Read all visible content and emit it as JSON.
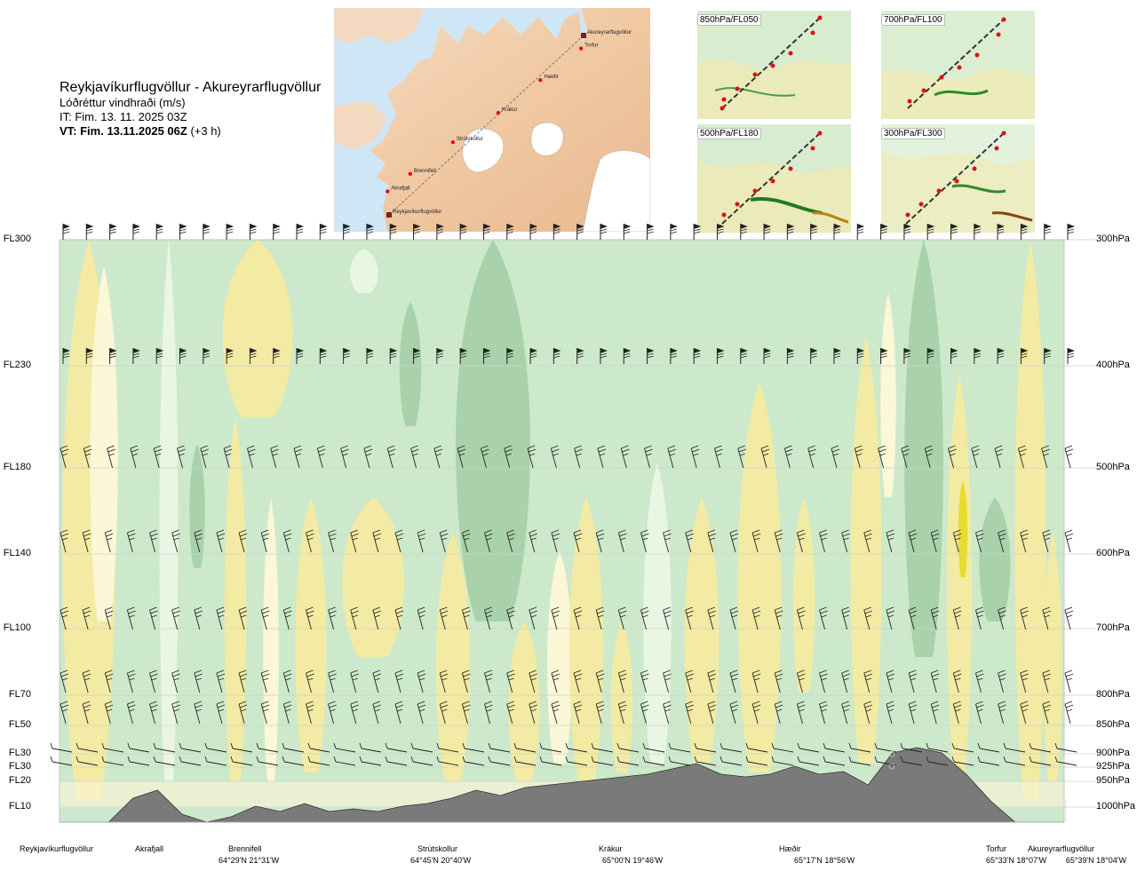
{
  "header": {
    "route": "Reykjavíkurflugvöllur - Akureyrarflugvöllur",
    "variable": "Lóðréttur vindhraði (m/s)",
    "issue_time": "IT: Fim. 13. 11. 2025 03Z",
    "valid_time_bold": "VT: Fim. 13.11.2025 06Z",
    "valid_time_suffix": "(+3 h)"
  },
  "map": {
    "towns": [
      {
        "name": "Akureyrarflugvöllur",
        "lon": -18.07,
        "lat": 65.66
      },
      {
        "name": "Torfur",
        "lon": -18.12,
        "lat": 65.55
      },
      {
        "name": "Hæðir",
        "lon": -18.93,
        "lat": 65.28
      },
      {
        "name": "Krákur",
        "lon": -19.77,
        "lat": 65.0
      },
      {
        "name": "Strútskollur",
        "lon": -20.67,
        "lat": 64.75
      },
      {
        "name": "Brennifell",
        "lon": -21.52,
        "lat": 64.48
      },
      {
        "name": "Akrafjall",
        "lon": -21.97,
        "lat": 64.33
      },
      {
        "name": "Reykjavíkurflugvöllur",
        "lon": -21.94,
        "lat": 64.13
      }
    ]
  },
  "mini_panels": [
    {
      "label": "850hPa/FL050"
    },
    {
      "label": "700hPa/FL100"
    },
    {
      "label": "500hPa/FL180"
    },
    {
      "label": "300hPa/FL300"
    }
  ],
  "levels": [
    {
      "fl": "FL300",
      "hpa": "300hPa"
    },
    {
      "fl": "FL230",
      "hpa": "400hPa"
    },
    {
      "fl": "FL180",
      "hpa": "500hPa"
    },
    {
      "fl": "FL140",
      "hpa": "600hPa"
    },
    {
      "fl": "FL100",
      "hpa": "700hPa"
    },
    {
      "fl": "FL70",
      "hpa": "800hPa"
    },
    {
      "fl": "FL50",
      "hpa": "850hPa"
    },
    {
      "fl": "FL30",
      "hpa": "900hPa"
    },
    {
      "fl": "FL30",
      "hpa": "925hPa"
    },
    {
      "fl": "FL20",
      "hpa": "950hPa"
    },
    {
      "fl": "FL10",
      "hpa": "1000hPa"
    }
  ],
  "locations": [
    {
      "name": "Reykjavíkurflugvöllur",
      "coord": ""
    },
    {
      "name": "Akrafjall",
      "coord": ""
    },
    {
      "name": "Brennifell",
      "coord": "64°29'N 21°31'W"
    },
    {
      "name": "Strútskollur",
      "coord": "64°45'N 20°40'W"
    },
    {
      "name": "Krákur",
      "coord": "65°00'N 19°46'W"
    },
    {
      "name": "Hæðir",
      "coord": "65°17'N 18°56'W"
    },
    {
      "name": "Torfur",
      "coord": "65°33'N 18°07'W"
    },
    {
      "name": "Akureyrarflugvöllur",
      "coord": "65°39'N 18°04'W"
    }
  ],
  "chart_data": {
    "type": "heatmap",
    "title": "Lóðréttur vindhraði (m/s)",
    "route": "Reykjavíkurflugvöllur - Akureyrarflugvöllur",
    "x_categories": [
      "Reykjavíkurflugvöllur",
      "Akrafjall",
      "Brennifell",
      "Strútskollur",
      "Krákur",
      "Hæðir",
      "Torfur",
      "Akureyrarflugvöllur"
    ],
    "y_levels_hpa": [
      300,
      400,
      500,
      600,
      700,
      800,
      850,
      900,
      925,
      950,
      1000
    ],
    "y_levels_fl": [
      "FL300",
      "FL230",
      "FL180",
      "FL140",
      "FL100",
      "FL70",
      "FL50",
      "FL30",
      "FL30",
      "FL20",
      "FL10"
    ],
    "colors": {
      "strong_up": "#e8dc2e",
      "up": "#f3eaa3",
      "weak_up": "#fbf7d7",
      "neutral": "#ffffff",
      "weak_down": "#e9f6e4",
      "down": "#cde9cb",
      "strong_down": "#a9d2aa",
      "terrain": "#7a7a7a"
    },
    "terrain_profile_m": [
      0,
      0,
      0,
      450,
      600,
      150,
      0,
      100,
      300,
      200,
      350,
      200,
      250,
      200,
      300,
      350,
      450,
      600,
      500,
      650,
      700,
      750,
      800,
      850,
      900,
      1000,
      1100,
      900,
      850,
      900,
      1050,
      900,
      950,
      700,
      1300,
      1400,
      1300,
      900,
      400,
      0,
      0,
      0
    ],
    "wind_barb_rows_hpa": [
      300,
      400,
      500,
      600,
      700,
      800,
      850,
      900,
      925
    ],
    "grid": true
  }
}
